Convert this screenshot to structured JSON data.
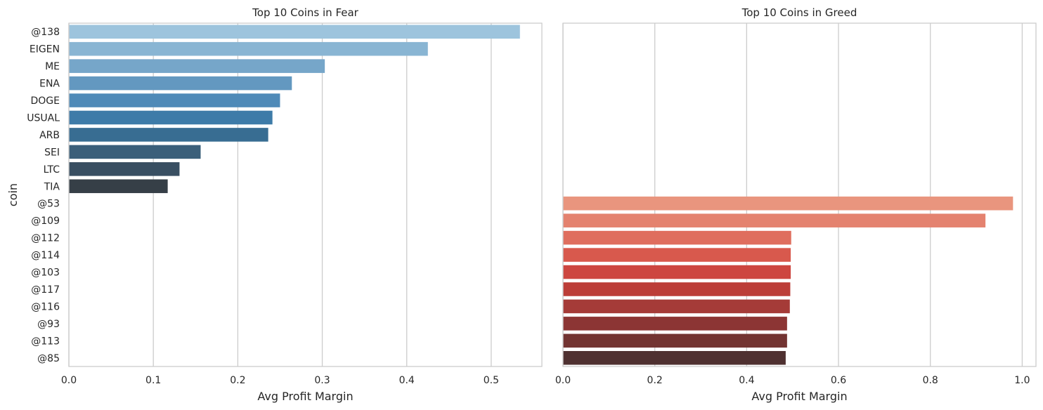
{
  "chart_data": [
    {
      "type": "bar",
      "orientation": "horizontal",
      "title": "Top 10 Coins in Fear",
      "xlabel": "Avg Profit Margin",
      "ylabel": "coin",
      "xlim": [
        0,
        0.56
      ],
      "xticks": [
        0.0,
        0.1,
        0.2,
        0.3,
        0.4,
        0.5
      ],
      "xtick_labels": [
        "0.0",
        "0.1",
        "0.2",
        "0.3",
        "0.4",
        "0.5"
      ],
      "grid": "vertical",
      "categories": [
        "@138",
        "EIGEN",
        "ME",
        "ENA",
        "DOGE",
        "USUAL",
        "ARB",
        "SEI",
        "LTC",
        "TIA",
        "@53",
        "@109",
        "@112",
        "@114",
        "@103",
        "@117",
        "@116",
        "@93",
        "@113",
        "@85"
      ],
      "values": [
        0.534,
        0.425,
        0.303,
        0.264,
        0.25,
        0.241,
        0.236,
        0.156,
        0.131,
        0.117,
        null,
        null,
        null,
        null,
        null,
        null,
        null,
        null,
        null,
        null
      ],
      "palette": [
        "#9dc4dd",
        "#89b5d3",
        "#76a6c9",
        "#6398c0",
        "#4f8ab8",
        "#3e7ba8",
        "#386d92",
        "#3b5f7a",
        "#394f62",
        "#363f47"
      ]
    },
    {
      "type": "bar",
      "orientation": "horizontal",
      "title": "Top 10 Coins in Greed",
      "xlabel": "Avg Profit Margin",
      "xlim": [
        0,
        1.03
      ],
      "xticks": [
        0.0,
        0.2,
        0.4,
        0.6,
        0.8,
        1.0
      ],
      "xtick_labels": [
        "0.0",
        "0.2",
        "0.4",
        "0.6",
        "0.8",
        "1.0"
      ],
      "grid": "vertical",
      "categories": [
        "@138",
        "EIGEN",
        "ME",
        "ENA",
        "DOGE",
        "USUAL",
        "ARB",
        "SEI",
        "LTC",
        "TIA",
        "@53",
        "@109",
        "@112",
        "@114",
        "@103",
        "@117",
        "@116",
        "@93",
        "@113",
        "@85"
      ],
      "values": [
        null,
        null,
        null,
        null,
        null,
        null,
        null,
        null,
        null,
        null,
        0.98,
        0.92,
        0.497,
        0.496,
        0.496,
        0.495,
        0.494,
        0.488,
        0.488,
        0.485
      ],
      "palette": [
        "#e9957e",
        "#e4826f",
        "#df6e5e",
        "#d8594d",
        "#cd4640",
        "#bc3e38",
        "#a53b38",
        "#8c3534",
        "#733432",
        "#4f3131"
      ]
    }
  ]
}
